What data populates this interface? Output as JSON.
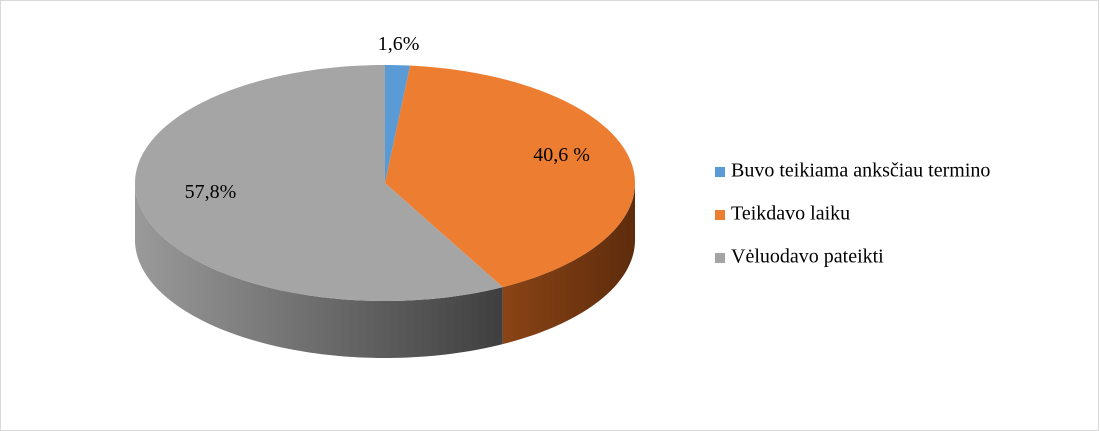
{
  "chart_data": {
    "type": "pie",
    "categories": [
      "Buvo teikiama anksčiau termino",
      "Teikdavo laiku",
      "Vėluodavo pateikti"
    ],
    "values": [
      1.6,
      40.6,
      57.8
    ],
    "value_labels": [
      "1,6%",
      "40,6 %",
      "57,8%"
    ],
    "colors": [
      "#5b9bd5",
      "#ed7d31",
      "#a5a5a5"
    ],
    "legend": "right"
  }
}
